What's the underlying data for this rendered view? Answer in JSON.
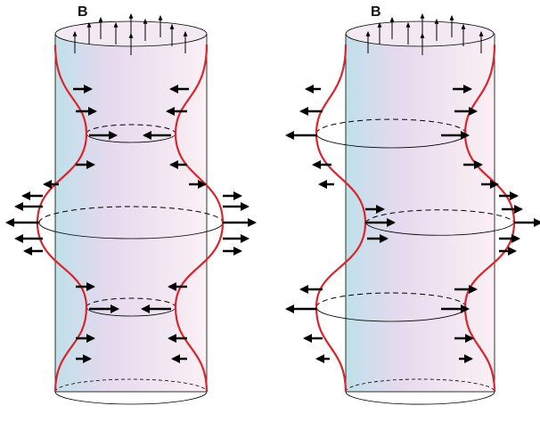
{
  "panels": [
    {
      "label": "B"
    },
    {
      "label": "B"
    }
  ]
}
